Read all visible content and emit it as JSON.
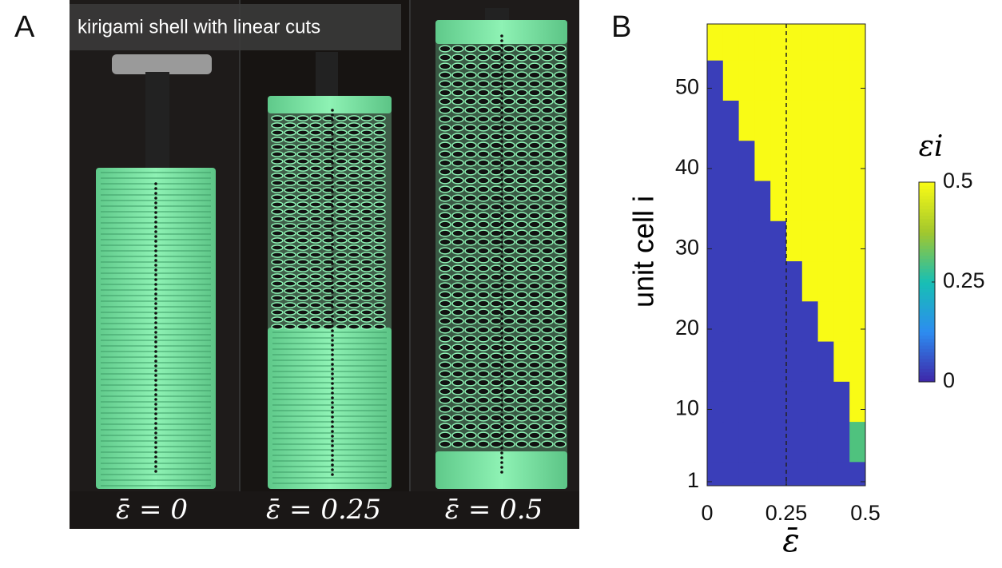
{
  "panel_a": {
    "label": "A",
    "caption": "kirigami shell with linear cuts",
    "photo_labels": [
      "ε̄ = 0",
      "ε̄ = 0.25",
      "ε̄ = 0.5"
    ]
  },
  "chart_data": {
    "type": "heatmap",
    "panel_label": "B",
    "x_label": "ε̄",
    "y_label": "unit cell i",
    "colorbar_label": "εi",
    "x": [
      0.025,
      0.075,
      0.125,
      0.175,
      0.225,
      0.275,
      0.325,
      0.375,
      0.425,
      0.475
    ],
    "y": [
      1,
      6,
      11,
      16,
      21,
      26,
      31,
      36,
      41,
      46,
      51,
      56
    ],
    "z": [
      [
        0.03,
        0.03,
        0.03,
        0.03,
        0.03,
        0.03,
        0.03,
        0.03,
        0.03,
        0.03
      ],
      [
        0.03,
        0.03,
        0.03,
        0.03,
        0.03,
        0.03,
        0.03,
        0.03,
        0.03,
        0.3
      ],
      [
        0.03,
        0.03,
        0.03,
        0.03,
        0.03,
        0.03,
        0.03,
        0.03,
        0.03,
        0.5
      ],
      [
        0.03,
        0.03,
        0.03,
        0.03,
        0.03,
        0.03,
        0.03,
        0.03,
        0.5,
        0.5
      ],
      [
        0.03,
        0.03,
        0.03,
        0.03,
        0.03,
        0.03,
        0.03,
        0.5,
        0.5,
        0.5
      ],
      [
        0.03,
        0.03,
        0.03,
        0.03,
        0.03,
        0.03,
        0.5,
        0.5,
        0.5,
        0.5
      ],
      [
        0.03,
        0.03,
        0.03,
        0.03,
        0.03,
        0.5,
        0.5,
        0.5,
        0.5,
        0.5
      ],
      [
        0.03,
        0.03,
        0.03,
        0.03,
        0.5,
        0.5,
        0.5,
        0.5,
        0.5,
        0.5
      ],
      [
        0.03,
        0.03,
        0.03,
        0.5,
        0.5,
        0.5,
        0.5,
        0.5,
        0.5,
        0.5
      ],
      [
        0.03,
        0.03,
        0.5,
        0.5,
        0.5,
        0.5,
        0.5,
        0.5,
        0.5,
        0.5
      ],
      [
        0.03,
        0.5,
        0.5,
        0.5,
        0.5,
        0.5,
        0.5,
        0.5,
        0.5,
        0.5
      ],
      [
        0.5,
        0.5,
        0.5,
        0.5,
        0.5,
        0.5,
        0.5,
        0.5,
        0.5,
        0.5
      ]
    ],
    "xlim": [
      0,
      0.5
    ],
    "ylim": [
      0.5,
      58
    ],
    "xticks": [
      0,
      0.25,
      0.5
    ],
    "yticks": [
      1,
      10,
      20,
      30,
      40,
      50
    ],
    "zlim": [
      0,
      0.5
    ],
    "colorbar_ticks": [
      0,
      0.25,
      0.5
    ],
    "colormap": [
      "#3e26a8",
      "#2d8cf0",
      "#17bfb4",
      "#a2c72d",
      "#f9fb15"
    ],
    "vline": 0.25
  }
}
